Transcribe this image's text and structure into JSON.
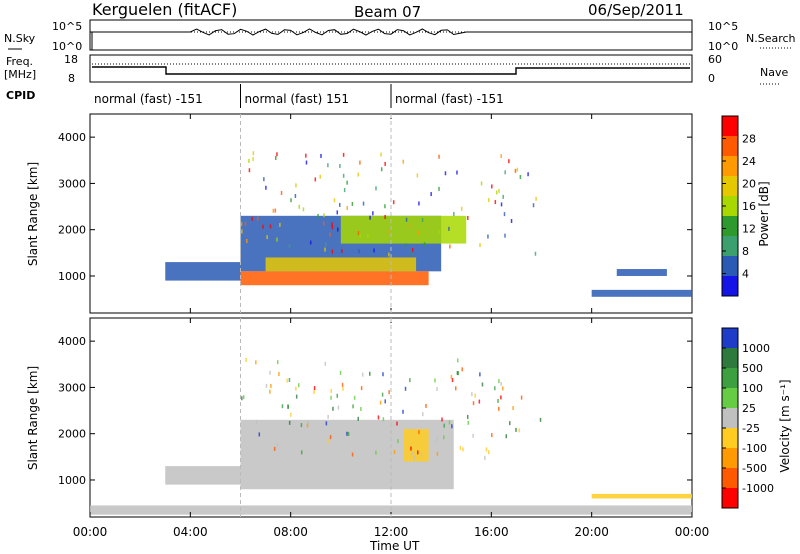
{
  "header": {
    "station": "Kerguelen (fitACF)",
    "beam": "Beam 07",
    "date": "06/Sep/2011"
  },
  "left_labels": {
    "nsky": "N.Sky",
    "freq": "Freq.",
    "freq_unit": "[MHz]",
    "cpid": "CPID"
  },
  "right_labels": {
    "nsearch": "N.Search",
    "nave": "Nave"
  },
  "count_axis": {
    "top": "10^5",
    "bottom": "10^0"
  },
  "freq_axis": {
    "top": "18",
    "bottom": "8"
  },
  "nave_axis": {
    "top": "60",
    "bottom": "0"
  },
  "cpid_segments": [
    {
      "label": "normal (fast) -151",
      "start": 0,
      "end": 6
    },
    {
      "label": "normal (fast) 151",
      "start": 6,
      "end": 12
    },
    {
      "label": "normal (fast) -151",
      "start": 12,
      "end": 24
    }
  ],
  "power_colorbar": {
    "title": "Power [dB]",
    "ticks": [
      "28",
      "24",
      "20",
      "16",
      "12",
      "8",
      "4"
    ],
    "colors": [
      "#ff0000",
      "#ff5a00",
      "#ff9a00",
      "#e6c800",
      "#a8d800",
      "#2e9a2e",
      "#3ca06e",
      "#2a5ab4",
      "#1414e6"
    ]
  },
  "velocity_colorbar": {
    "title": "Velocity [m s⁻¹]",
    "ticks": [
      "1000",
      "500",
      "100",
      "25",
      "-25",
      "-100",
      "-500",
      "-1000"
    ],
    "colors": [
      "#1e3cc8",
      "#2e7a3c",
      "#3ca040",
      "#66cc44",
      "#c0c0c0",
      "#ffcc22",
      "#ff9a00",
      "#ff5a00",
      "#ff0000"
    ]
  },
  "x_axis": {
    "label": "Time UT"
  },
  "chart_data": [
    {
      "type": "heatmap",
      "title": "Power",
      "ylabel": "Slant Range [km]",
      "xlabel": "Time UT",
      "xlim": [
        0,
        24
      ],
      "ylim": [
        200,
        4500
      ],
      "x_ticks": [
        "00:00",
        "04:00",
        "08:00",
        "12:00",
        "16:00",
        "20:00",
        "00:00"
      ],
      "x_tick_values": [
        0,
        4,
        8,
        12,
        16,
        20,
        24
      ],
      "y_ticks": [
        1000,
        2000,
        3000,
        4000
      ],
      "colorbar_range_db": [
        0,
        30
      ],
      "regions": [
        {
          "t0": 3.0,
          "t1": 6.0,
          "r0": 900,
          "r1": 1300,
          "value": 6
        },
        {
          "t0": 6.0,
          "t1": 14.0,
          "r0": 1100,
          "r1": 2300,
          "value": 6
        },
        {
          "t0": 6.0,
          "t1": 13.5,
          "r0": 800,
          "r1": 1100,
          "value": 26
        },
        {
          "t0": 7.0,
          "t1": 13.0,
          "r0": 1100,
          "r1": 1400,
          "value": 18
        },
        {
          "t0": 10.0,
          "t1": 15.0,
          "r0": 1700,
          "r1": 2300,
          "value": 16
        },
        {
          "t0": 20.0,
          "t1": 24.0,
          "r0": 550,
          "r1": 700,
          "value": 5
        },
        {
          "t0": 21.0,
          "t1": 23.0,
          "r0": 1000,
          "r1": 1150,
          "value": 6
        }
      ]
    },
    {
      "type": "heatmap",
      "title": "Velocity",
      "ylabel": "Slant Range [km]",
      "xlabel": "Time UT",
      "xlim": [
        0,
        24
      ],
      "ylim": [
        200,
        4500
      ],
      "x_ticks": [
        "00:00",
        "04:00",
        "08:00",
        "12:00",
        "16:00",
        "20:00",
        "00:00"
      ],
      "x_tick_values": [
        0,
        4,
        8,
        12,
        16,
        20,
        24
      ],
      "y_ticks": [
        1000,
        2000,
        3000,
        4000
      ],
      "regions": [
        {
          "t0": 3.0,
          "t1": 6.0,
          "r0": 900,
          "r1": 1300,
          "value": 0
        },
        {
          "t0": 6.0,
          "t1": 14.5,
          "r0": 800,
          "r1": 2300,
          "value": 0
        },
        {
          "t0": 12.5,
          "t1": 13.5,
          "r0": 1400,
          "r1": 2100,
          "value": -300
        },
        {
          "t0": 20.0,
          "t1": 24.0,
          "r0": 600,
          "r1": 700,
          "value": -150
        },
        {
          "t0": 0.0,
          "t1": 24.0,
          "r0": 250,
          "r1": 450,
          "value": -50
        }
      ]
    }
  ]
}
